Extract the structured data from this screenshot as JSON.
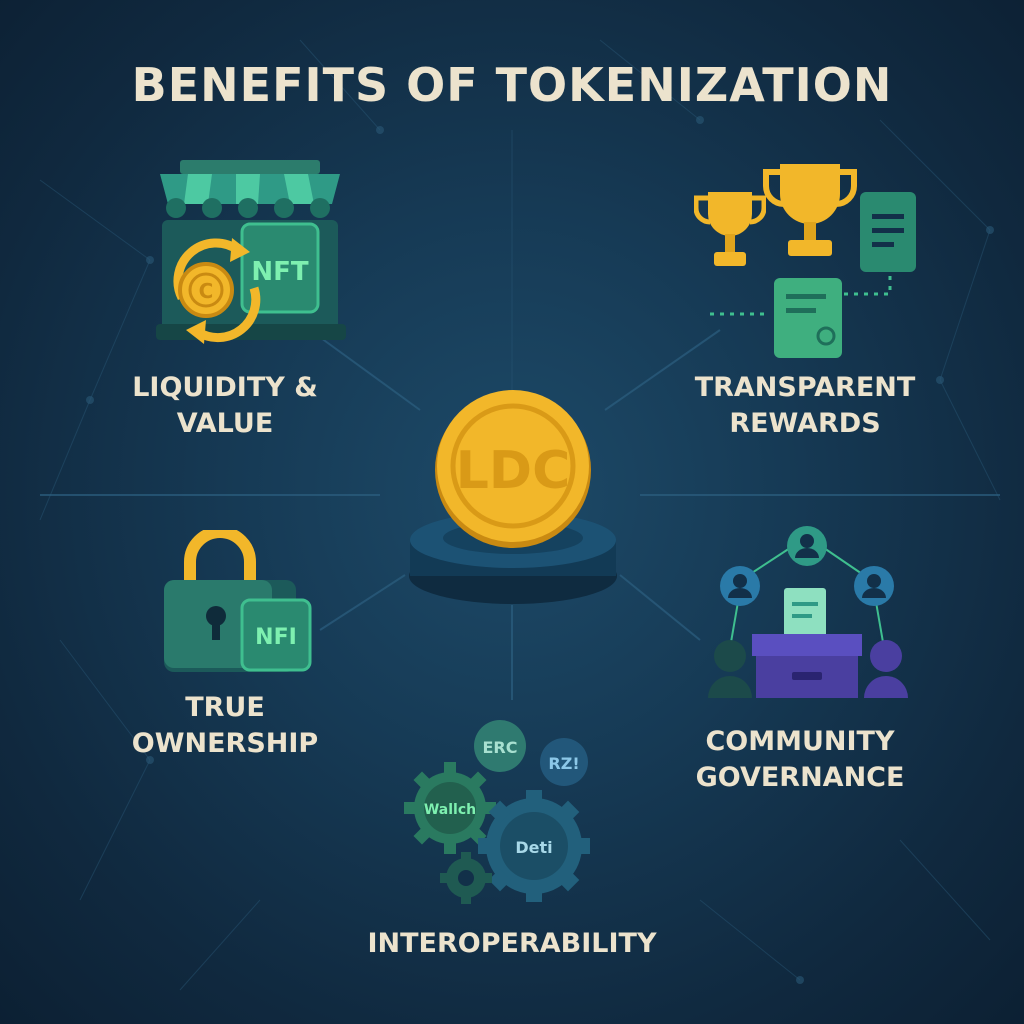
{
  "title": "BENEFITS OF TOKENIZATION",
  "center": {
    "coin_label": "LDC"
  },
  "benefits": {
    "liquidity": {
      "line1": "LIQUIDITY &",
      "line2": "VALUE",
      "icon_tag": "NFT"
    },
    "rewards": {
      "line1": "TRANSPARENT",
      "line2": "REWARDS"
    },
    "ownership": {
      "line1": "TRUE",
      "line2": "OWNERSHIP",
      "icon_tag": "NFI"
    },
    "governance": {
      "line1": "COMMUNITY",
      "line2": "GOVERNANCE"
    },
    "interoperability": {
      "line1": "INTEROPERABILITY",
      "badges": {
        "erc": "ERC",
        "rz": "RZ!",
        "wallet": "Wallch",
        "defi": "Deti"
      }
    }
  },
  "colors": {
    "background": "#123049",
    "gold": "#f2b72a",
    "teal": "#2f9a86",
    "text": "#ece3cd",
    "purple": "#4a3fa0"
  },
  "icons": [
    "storefront-icon",
    "coin-icon",
    "nft-card-icon",
    "trophy-icon",
    "document-icon",
    "certificate-icon",
    "padlock-icon",
    "ballot-box-icon",
    "user-icon",
    "gear-icon"
  ]
}
